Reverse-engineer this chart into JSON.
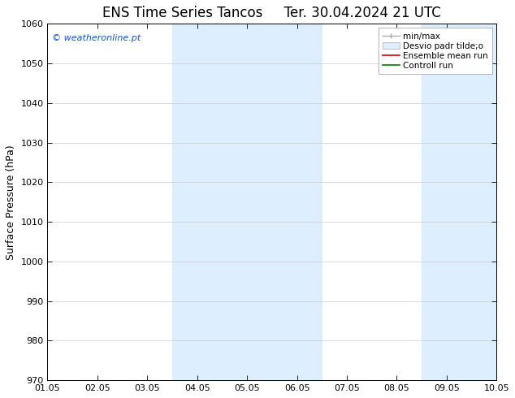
{
  "title": "ENS Time Series Tancos",
  "title2": "Ter. 30.04.2024 21 UTC",
  "ylabel": "Surface Pressure (hPa)",
  "ylim": [
    970,
    1060
  ],
  "yticks": [
    970,
    980,
    990,
    1000,
    1010,
    1020,
    1030,
    1040,
    1050,
    1060
  ],
  "xtick_labels": [
    "01.05",
    "02.05",
    "03.05",
    "04.05",
    "05.05",
    "06.05",
    "07.05",
    "08.05",
    "09.05",
    "10.05"
  ],
  "shaded_regions": [
    {
      "start": 3,
      "end": 5
    },
    {
      "start": 8,
      "end": 9
    }
  ],
  "shade_color": "#ddeeff",
  "shade_alpha": 1.0,
  "watermark": "© weatheronline.pt",
  "watermark_color": "#1155cc",
  "legend_labels": [
    "min/max",
    "Desvio padr tilde;o",
    "Ensemble mean run",
    "Controll run"
  ],
  "background_color": "#ffffff",
  "plot_bg_color": "#ffffff",
  "grid_color": "#cccccc",
  "axis_color": "#000000",
  "fontsize_title": 12,
  "fontsize_axis": 9,
  "fontsize_tick": 8,
  "fontsize_legend": 7.5,
  "fontsize_watermark": 8
}
